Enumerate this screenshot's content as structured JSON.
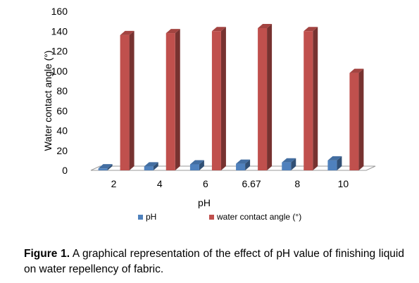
{
  "chart_data": {
    "type": "bar",
    "categories": [
      "2",
      "4",
      "6",
      "6.67",
      "8",
      "10"
    ],
    "series": [
      {
        "name": "pH",
        "values": [
          2,
          4,
          6,
          6.67,
          8,
          10
        ],
        "color": "#4F81BD"
      },
      {
        "name": "water contact angle (°)",
        "values": [
          136,
          138,
          140,
          143,
          140,
          98
        ],
        "color": "#C0504D"
      }
    ],
    "xlabel": "pH",
    "ylabel": "Water contact angle (°)",
    "ylim": [
      0,
      160
    ],
    "yticks": [
      0,
      20,
      40,
      60,
      80,
      100,
      120,
      140,
      160
    ],
    "grid": false,
    "legend": "bottom",
    "style": "3d"
  },
  "caption": {
    "label": "Figure 1.",
    "text": "A graphical representation of the effect of pH value of finishing liquid on water repellency of fabric."
  }
}
